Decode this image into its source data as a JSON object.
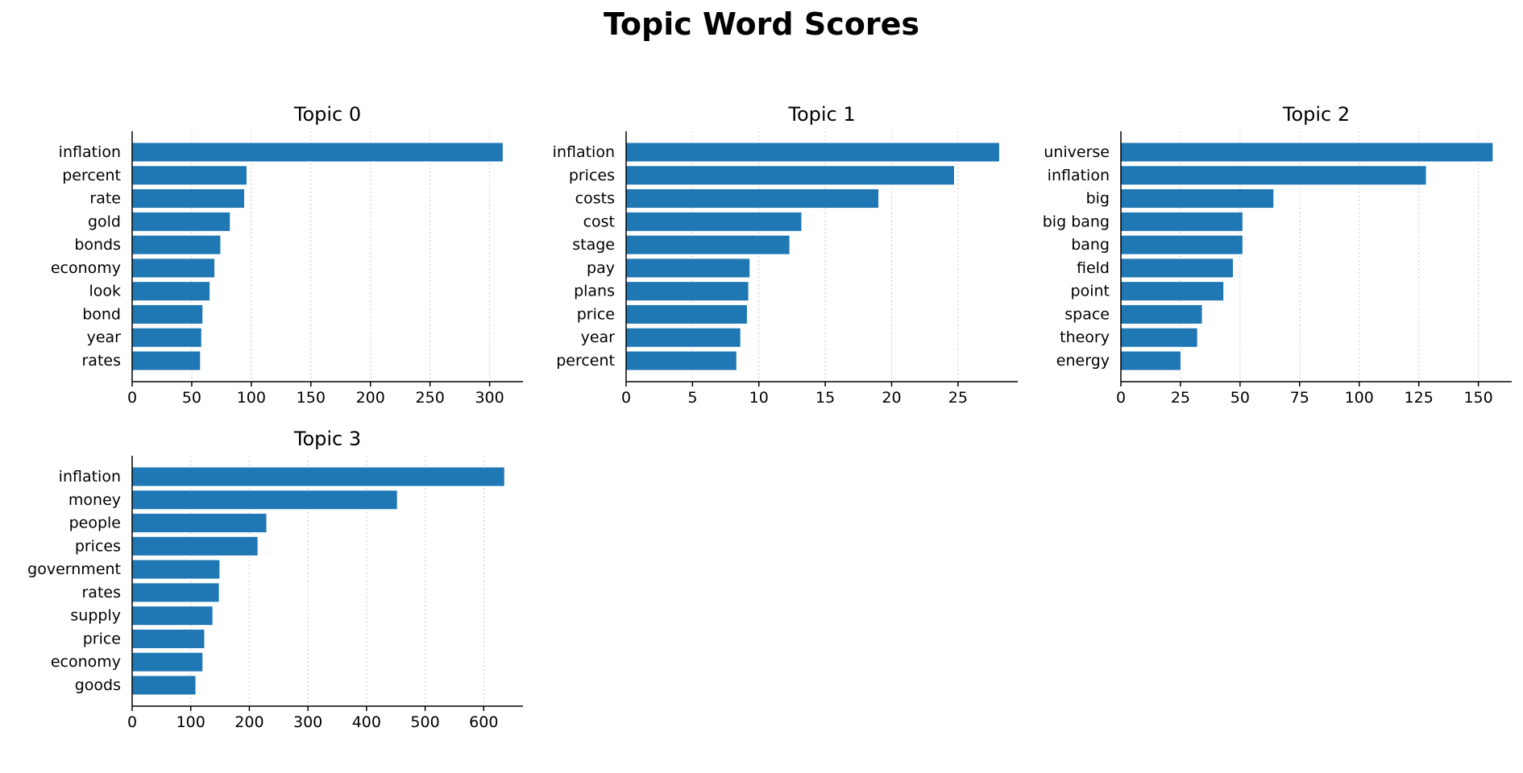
{
  "title": "Topic Word Scores",
  "colors": {
    "bar": "#1f77b4"
  },
  "chart_data": [
    {
      "type": "bar",
      "orientation": "horizontal",
      "title": "Topic 0",
      "categories": [
        "inflation",
        "percent",
        "rate",
        "gold",
        "bonds",
        "economy",
        "look",
        "bond",
        "year",
        "rates"
      ],
      "values": [
        311,
        96,
        94,
        82,
        74,
        69,
        65,
        59,
        58,
        57
      ],
      "xticks": [
        0,
        50,
        100,
        150,
        200,
        250,
        300
      ],
      "xlim": [
        0,
        328
      ],
      "grid": "x",
      "xlabel": "",
      "ylabel": ""
    },
    {
      "type": "bar",
      "orientation": "horizontal",
      "title": "Topic 1",
      "categories": [
        "inflation",
        "prices",
        "costs",
        "cost",
        "stage",
        "pay",
        "plans",
        "price",
        "year",
        "percent"
      ],
      "values": [
        28.1,
        24.7,
        19.0,
        13.2,
        12.3,
        9.3,
        9.2,
        9.1,
        8.6,
        8.3
      ],
      "xticks": [
        0,
        5,
        10,
        15,
        20,
        25
      ],
      "xlim": [
        0,
        29.5
      ],
      "grid": "x",
      "xlabel": "",
      "ylabel": ""
    },
    {
      "type": "bar",
      "orientation": "horizontal",
      "title": "Topic 2",
      "categories": [
        "universe",
        "inflation",
        "big",
        "big bang",
        "bang",
        "field",
        "point",
        "space",
        "theory",
        "energy"
      ],
      "values": [
        156,
        128,
        64,
        51,
        51,
        47,
        43,
        34,
        32,
        25
      ],
      "xticks": [
        0,
        25,
        50,
        75,
        100,
        125,
        150
      ],
      "xlim": [
        0,
        164
      ],
      "grid": "x",
      "xlabel": "",
      "ylabel": ""
    },
    {
      "type": "bar",
      "orientation": "horizontal",
      "title": "Topic 3",
      "categories": [
        "inflation",
        "money",
        "people",
        "prices",
        "government",
        "rates",
        "supply",
        "price",
        "economy",
        "goods"
      ],
      "values": [
        635,
        452,
        229,
        214,
        149,
        148,
        137,
        123,
        120,
        108
      ],
      "xticks": [
        0,
        100,
        200,
        300,
        400,
        500,
        600
      ],
      "xlim": [
        0,
        667
      ],
      "grid": "x",
      "xlabel": "",
      "ylabel": ""
    }
  ]
}
